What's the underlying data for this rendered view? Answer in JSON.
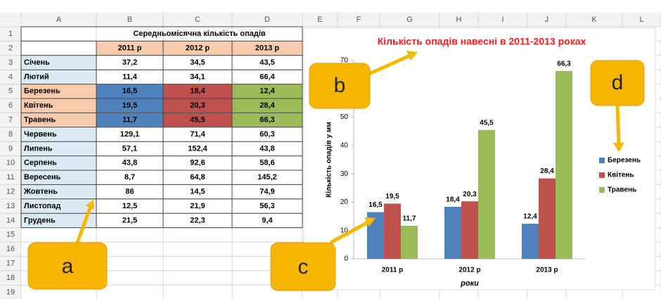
{
  "sheet": {
    "columns": [
      "A",
      "B",
      "C",
      "D",
      "E",
      "F",
      "G",
      "H",
      "I",
      "J",
      "K",
      "L"
    ],
    "row_numbers": [
      1,
      2,
      3,
      4,
      5,
      6,
      7,
      8,
      9,
      10,
      11,
      12,
      13,
      14,
      15,
      16,
      17,
      18,
      19
    ],
    "table": {
      "title": "Середньомісячна кількість опадів",
      "header": [
        "2011 р",
        "2012 р",
        "2013 р"
      ],
      "rows": [
        [
          "Січень",
          "37,2",
          "34,5",
          "43,5"
        ],
        [
          "Лютий",
          "11,4",
          "34,1",
          "66,4"
        ],
        [
          "Березень",
          "16,5",
          "18,4",
          "12,4"
        ],
        [
          "Квітень",
          "19,5",
          "20,3",
          "28,4"
        ],
        [
          "Травень",
          "11,7",
          "45,5",
          "66,3"
        ],
        [
          "Червень",
          "129,1",
          "71,4",
          "60,3"
        ],
        [
          "Липень",
          "57,1",
          "152,4",
          "43,8"
        ],
        [
          "Серпень",
          "43,8",
          "92,6",
          "58,6"
        ],
        [
          "Вересень",
          "8,7",
          "64,8",
          "145,2"
        ],
        [
          "Жовтень",
          "86",
          "14,5",
          "74,9"
        ],
        [
          "Листопад",
          "12,5",
          "21,9",
          "56,3"
        ],
        [
          "Грудень",
          "21,5",
          "22,3",
          "9,4"
        ]
      ]
    }
  },
  "chart_data": {
    "type": "bar",
    "title": "Кількість опадів навесні в 2011-2013 роках",
    "x_label": "роки",
    "y_label": "Кількість опадів у мм",
    "categories": [
      "2011 р",
      "2012 р",
      "2013 р"
    ],
    "series": [
      {
        "name": "Березень",
        "color": "#4f81bd",
        "values": [
          16.5,
          18.4,
          12.4
        ],
        "value_labels": [
          "16,5",
          "18,4",
          "12,4"
        ]
      },
      {
        "name": "Квітень",
        "color": "#c0504d",
        "values": [
          19.5,
          20.3,
          28.4
        ],
        "value_labels": [
          "19,5",
          "20,3",
          "28,4"
        ]
      },
      {
        "name": "Травень",
        "color": "#9bbb59",
        "values": [
          11.7,
          45.5,
          66.3
        ],
        "value_labels": [
          "11,7",
          "45,5",
          "66,3"
        ]
      }
    ],
    "ylim": [
      0,
      70
    ],
    "yticks": [
      0,
      10,
      20,
      30,
      40,
      50,
      60,
      70
    ],
    "grid": false,
    "legend": "right"
  },
  "callouts": [
    "a",
    "b",
    "c",
    "d"
  ]
}
